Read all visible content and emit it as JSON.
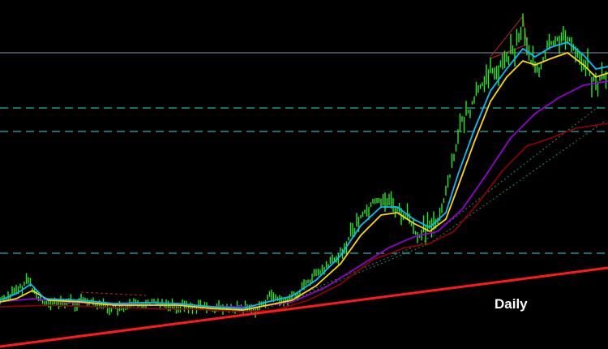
{
  "annotation": "Daily"
}
